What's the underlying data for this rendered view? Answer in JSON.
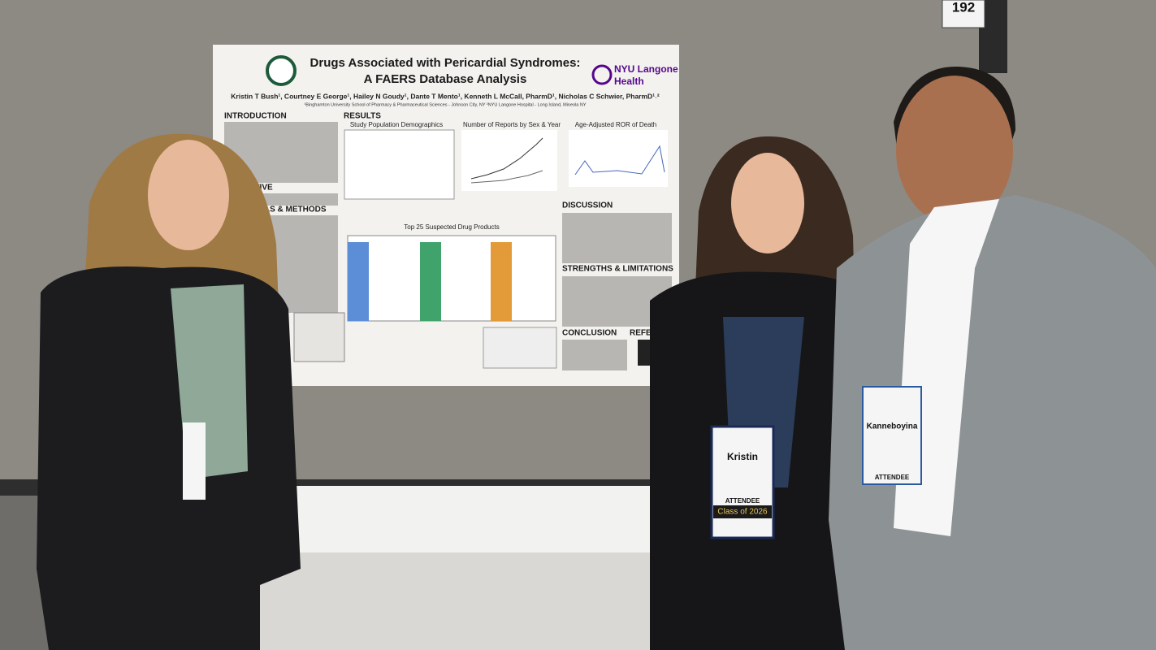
{
  "sign": {
    "number": "192"
  },
  "poster": {
    "title_line1": "Drugs Associated with Pericardial Syndromes:",
    "title_line2": "A FAERS Database Analysis",
    "logo_line1": "NYU Langone",
    "logo_line2": "Health",
    "authors": "Kristin T Bush¹, Courtney E George¹, Hailey N Goudy¹, Dante T Mento¹, Kenneth L McCall, PharmD¹, Nicholas C Schwier, PharmD¹˒²",
    "affiliations": "¹Binghamton University School of Pharmacy & Pharmaceutical Sciences - Johnson City, NY ²NYU Langone Hospital - Long Island, Mineola NY",
    "sections": [
      "INTRODUCTION",
      "RESULTS",
      "JECTIVE",
      "TERIALS & METHODS",
      "DISCUSSION",
      "STRENGTHS & LIMITATIONS",
      "CONCLUSION",
      "REFERENCE"
    ],
    "figures": [
      "Study Population Demographics",
      "Number of Reports by Sex & Year",
      "Age-Adjusted ROR of Death",
      "Top 25 Suspected Drug Products"
    ]
  },
  "badges": [
    {
      "name": "Kristin",
      "type": "ATTENDEE",
      "class": "Class of 2026"
    },
    {
      "name": "Kanneboyina",
      "type": "ATTENDEE"
    }
  ]
}
